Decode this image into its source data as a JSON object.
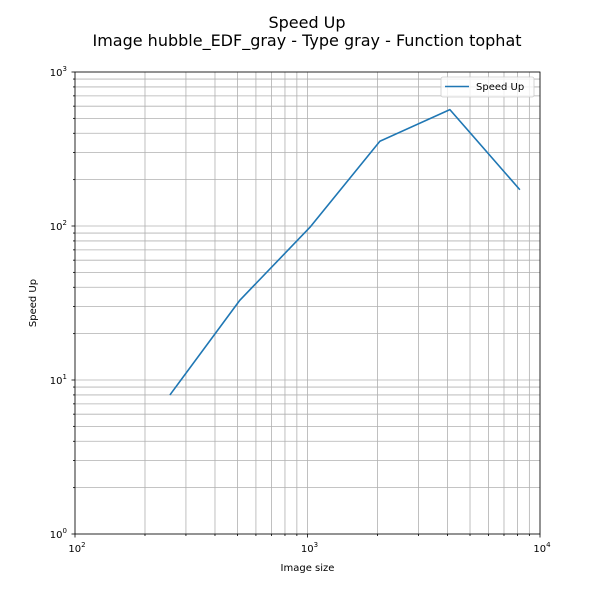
{
  "chart_data": {
    "type": "line",
    "title_line1": "Speed Up",
    "title_line2": "Image hubble_EDF_gray - Type gray - Function tophat",
    "xlabel": "Image size",
    "ylabel": "Speed Up",
    "xscale": "log",
    "yscale": "log",
    "xlim": [
      100,
      10000
    ],
    "ylim": [
      1,
      1000
    ],
    "grid": "both (major and minor)",
    "legend_position": "top-right",
    "x_tick_labels": [
      {
        "base": "10",
        "exp": "2",
        "value": 100
      },
      {
        "base": "10",
        "exp": "3",
        "value": 1000
      },
      {
        "base": "10",
        "exp": "4",
        "value": 10000
      }
    ],
    "y_tick_labels": [
      {
        "base": "10",
        "exp": "0",
        "value": 1
      },
      {
        "base": "10",
        "exp": "1",
        "value": 10
      },
      {
        "base": "10",
        "exp": "2",
        "value": 100
      },
      {
        "base": "10",
        "exp": "3",
        "value": 1000
      }
    ],
    "series": [
      {
        "name": "Speed Up",
        "color": "#1f77b4",
        "x": [
          256,
          512,
          1024,
          2048,
          4096,
          8192
        ],
        "y": [
          8,
          33,
          98,
          355,
          570,
          172
        ]
      }
    ]
  }
}
